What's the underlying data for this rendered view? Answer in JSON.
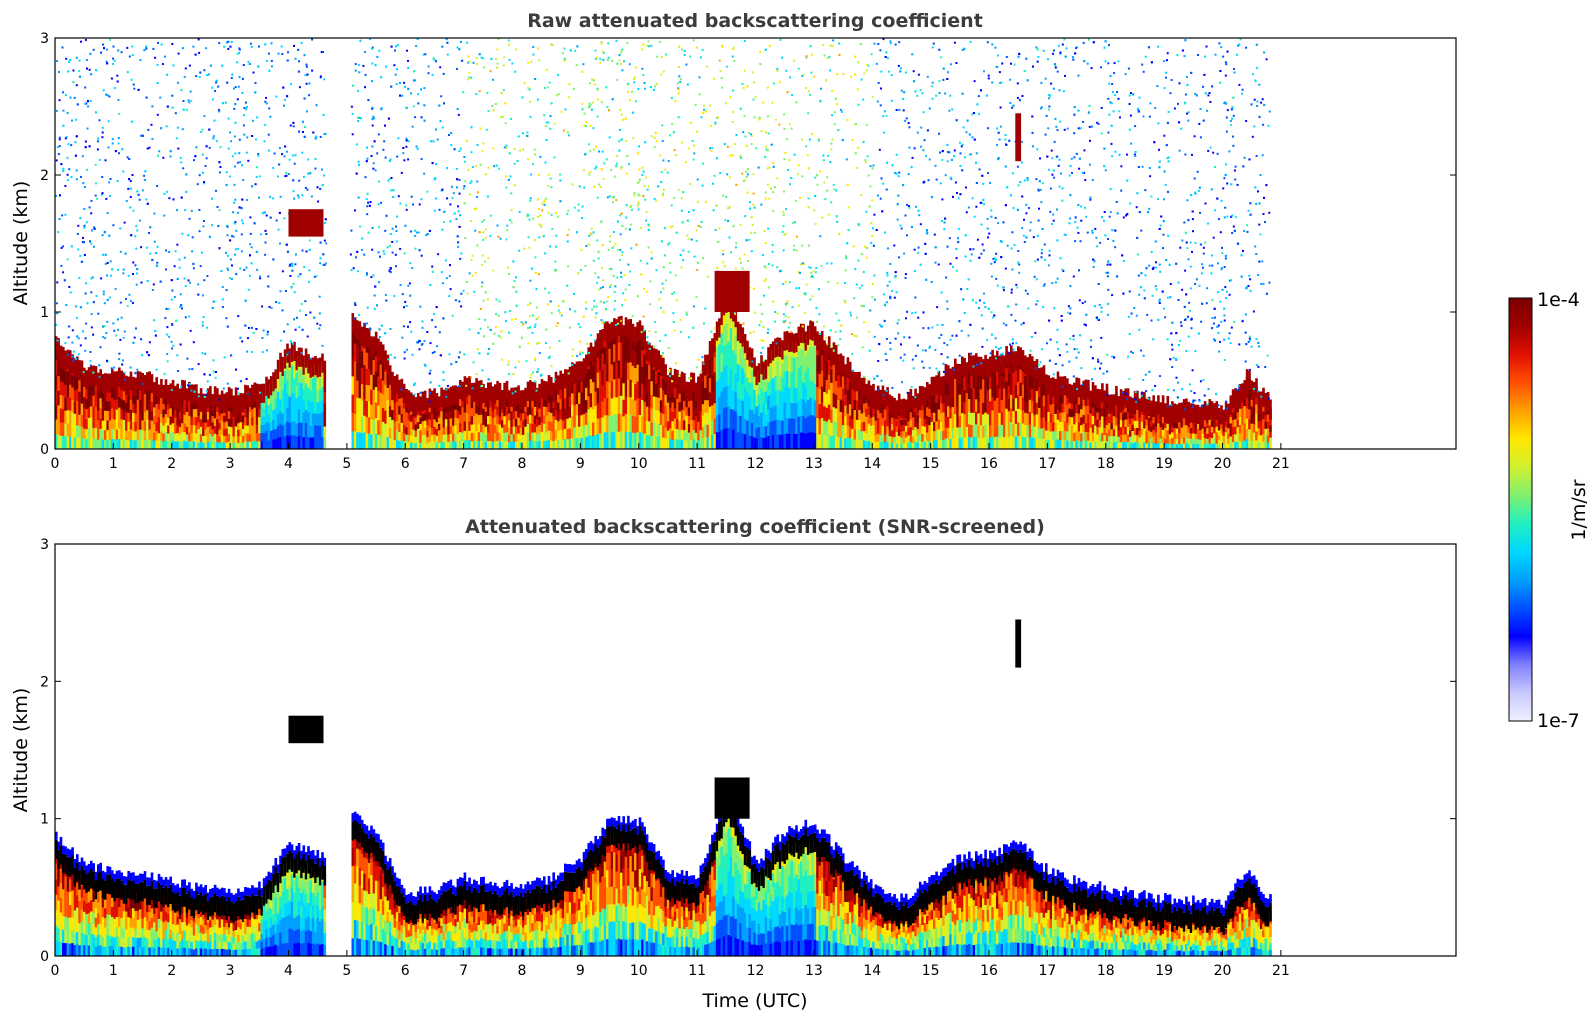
{
  "colors": {
    "colormap": [
      "#f0f0ff",
      "#c8c8ff",
      "#8080ff",
      "#0000ff",
      "#0050ff",
      "#00a0ff",
      "#00d8ff",
      "#20f0c0",
      "#80f070",
      "#d0f030",
      "#ffe800",
      "#ffa000",
      "#ff5000",
      "#e01000",
      "#a00000",
      "#7a0000"
    ],
    "frame": "#000000",
    "screened_core": "#000000"
  },
  "chart_data": [
    {
      "type": "heatmap",
      "title": "Raw attenuated backscattering coefficient",
      "xlabel": "",
      "ylabel": "Altitude (km)",
      "xlim": [
        0,
        24
      ],
      "ylim": [
        0,
        3
      ],
      "xticks": [
        "0",
        "1",
        "2",
        "3",
        "4",
        "5",
        "6",
        "7",
        "8",
        "9",
        "10",
        "11",
        "12",
        "13",
        "14",
        "15",
        "16",
        "17",
        "18",
        "19",
        "20",
        "21"
      ],
      "yticks": [
        "0",
        "1",
        "2",
        "3"
      ],
      "data_gap_hours": [
        4.63,
        5.05
      ],
      "data_end_hour": 20.8,
      "boundary_layer_top_km": [
        [
          0,
          0.75
        ],
        [
          0.5,
          0.55
        ],
        [
          1,
          0.5
        ],
        [
          1.5,
          0.48
        ],
        [
          2,
          0.42
        ],
        [
          2.5,
          0.38
        ],
        [
          3,
          0.35
        ],
        [
          3.5,
          0.4
        ],
        [
          4,
          0.7
        ],
        [
          4.6,
          0.6
        ],
        [
          5.05,
          0.95
        ],
        [
          5.5,
          0.75
        ],
        [
          6,
          0.35
        ],
        [
          6.5,
          0.35
        ],
        [
          7,
          0.45
        ],
        [
          7.5,
          0.4
        ],
        [
          8,
          0.4
        ],
        [
          8.5,
          0.45
        ],
        [
          9,
          0.6
        ],
        [
          9.5,
          0.9
        ],
        [
          10,
          0.85
        ],
        [
          10.5,
          0.5
        ],
        [
          11,
          0.45
        ],
        [
          11.5,
          1.1
        ],
        [
          12,
          0.55
        ],
        [
          12.5,
          0.8
        ],
        [
          13,
          0.85
        ],
        [
          13.5,
          0.6
        ],
        [
          14,
          0.4
        ],
        [
          14.5,
          0.3
        ],
        [
          15,
          0.45
        ],
        [
          15.5,
          0.6
        ],
        [
          16,
          0.62
        ],
        [
          16.5,
          0.7
        ],
        [
          17,
          0.5
        ],
        [
          17.5,
          0.42
        ],
        [
          18,
          0.38
        ],
        [
          18.5,
          0.33
        ],
        [
          19,
          0.3
        ],
        [
          19.5,
          0.28
        ],
        [
          20,
          0.26
        ],
        [
          20.4,
          0.5
        ],
        [
          20.8,
          0.3
        ]
      ],
      "aerosol_layers_km": [
        {
          "start": 4.0,
          "end": 4.6,
          "low": 1.55,
          "high": 1.75
        },
        {
          "start": 16.45,
          "end": 16.55,
          "low": 2.1,
          "high": 2.45
        },
        {
          "start": 11.3,
          "end": 11.9,
          "low": 1.0,
          "high": 1.3
        }
      ]
    },
    {
      "type": "heatmap",
      "title": "Attenuated backscattering coefficient (SNR-screened)",
      "xlabel": "Time (UTC)",
      "ylabel": "Altitude (km)",
      "xlim": [
        0,
        24
      ],
      "ylim": [
        0,
        3
      ],
      "xticks": [
        "0",
        "1",
        "2",
        "3",
        "4",
        "5",
        "6",
        "7",
        "8",
        "9",
        "10",
        "11",
        "12",
        "13",
        "14",
        "15",
        "16",
        "17",
        "18",
        "19",
        "20",
        "21"
      ],
      "yticks": [
        "0",
        "1",
        "2",
        "3"
      ],
      "data_gap_hours": [
        4.63,
        5.05
      ],
      "data_end_hour": 20.8
    }
  ],
  "colorbar": {
    "max_label": "1e-4",
    "min_label": "1e-7",
    "unit_label": "1/m/sr"
  }
}
